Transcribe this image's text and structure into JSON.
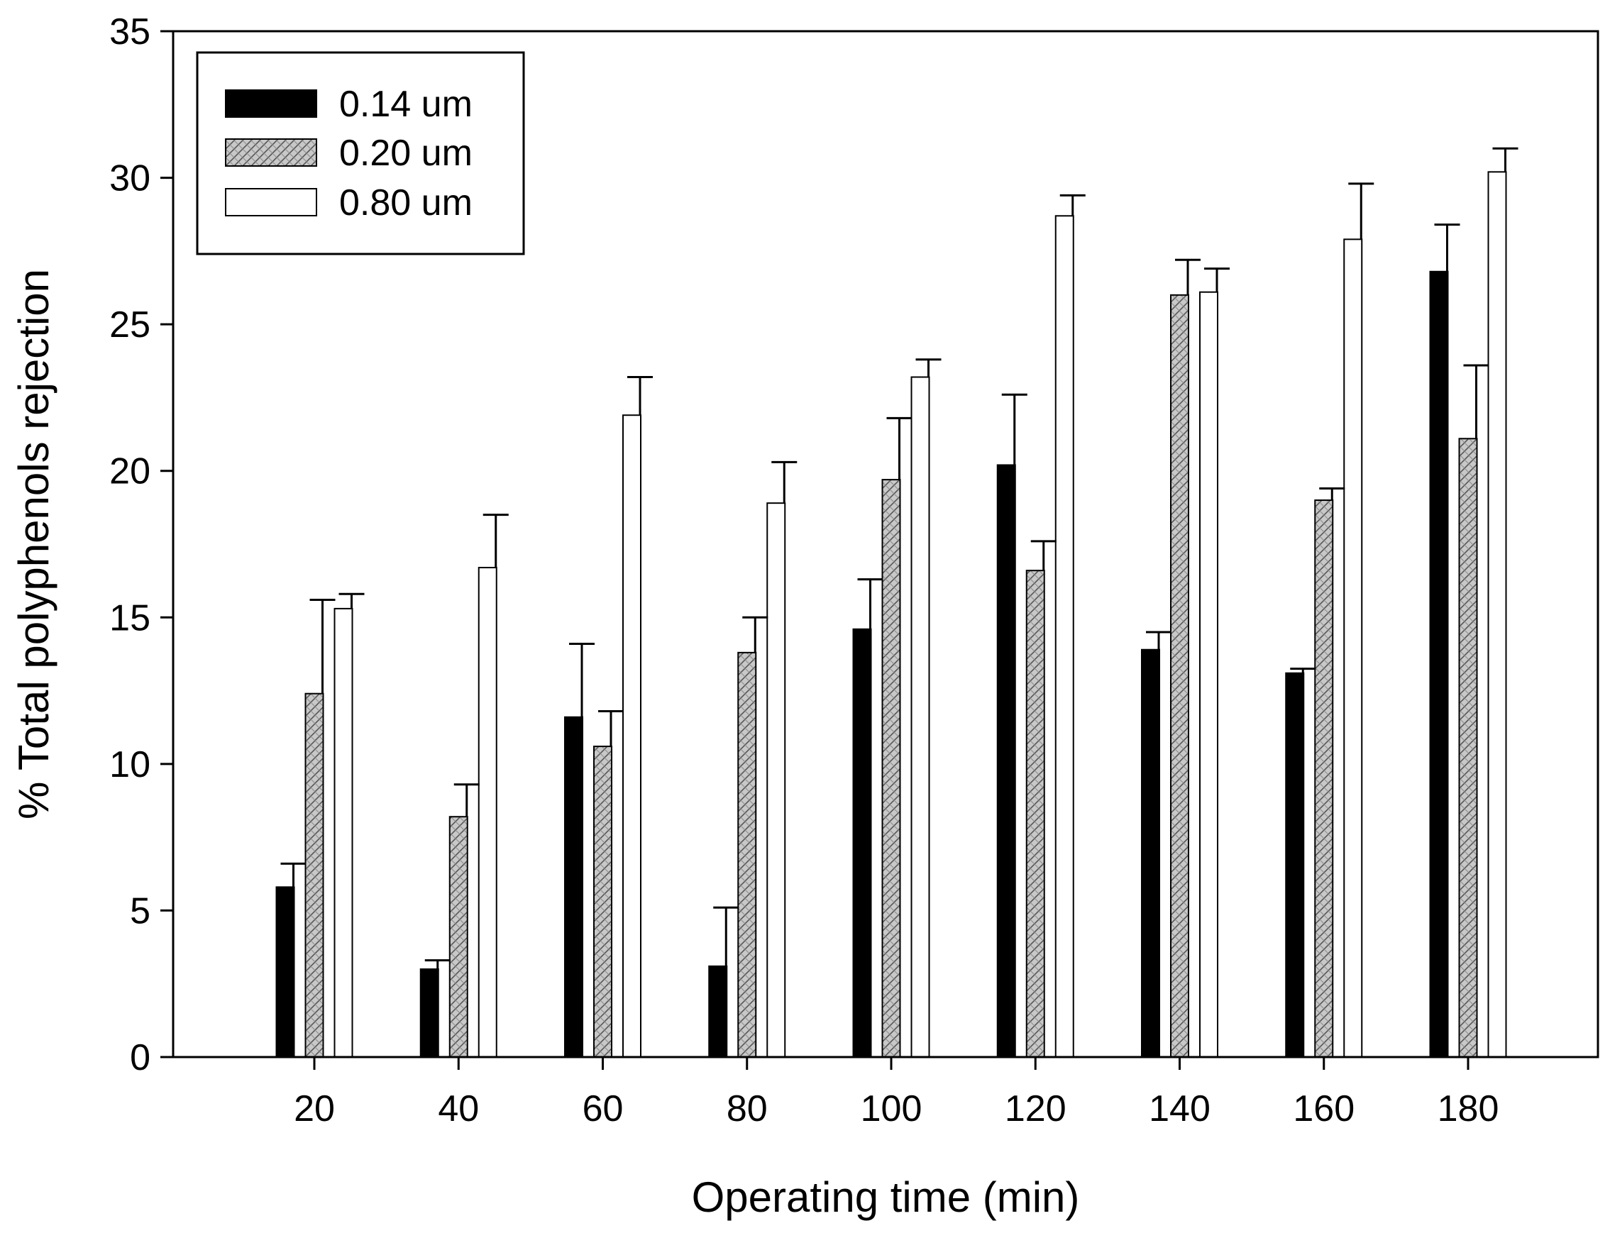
{
  "chart_data": {
    "type": "bar",
    "xlabel": "Operating time (min)",
    "ylabel": "% Total polyphenols rejection",
    "ylim": [
      0,
      35
    ],
    "yticks": [
      "0",
      "5",
      "10",
      "15",
      "20",
      "25",
      "30",
      "35"
    ],
    "categories": [
      "20",
      "40",
      "60",
      "80",
      "100",
      "120",
      "140",
      "160",
      "180"
    ],
    "series": [
      {
        "name": "0.14 um",
        "fill": "solid",
        "color": "#000000",
        "values": [
          5.8,
          3.0,
          11.6,
          3.1,
          14.6,
          20.2,
          13.9,
          13.1,
          26.8
        ],
        "errors": [
          0.8,
          0.3,
          2.5,
          2.0,
          1.7,
          2.4,
          0.6,
          0.15,
          1.6
        ]
      },
      {
        "name": "0.20 um",
        "fill": "hatched",
        "color": "#c8c8c8",
        "values": [
          12.4,
          8.2,
          10.6,
          13.8,
          19.7,
          16.6,
          26.0,
          19.0,
          21.1
        ],
        "errors": [
          3.2,
          1.1,
          1.2,
          1.2,
          2.1,
          1.0,
          1.2,
          0.4,
          2.5
        ]
      },
      {
        "name": "0.80 um",
        "fill": "open",
        "color": "#ffffff",
        "values": [
          15.3,
          16.7,
          21.9,
          18.9,
          23.2,
          28.7,
          26.1,
          27.9,
          30.2
        ],
        "errors": [
          0.5,
          1.8,
          1.3,
          1.4,
          0.6,
          0.7,
          0.8,
          1.9,
          0.8
        ]
      }
    ],
    "legend_position": "top-left"
  }
}
